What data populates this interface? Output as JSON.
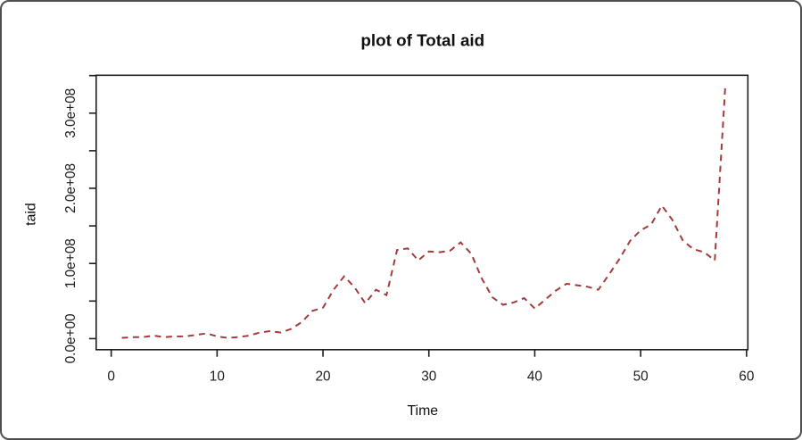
{
  "window": {
    "background_color": "#ffffff",
    "border_color": "#4f4f4f"
  },
  "chart_data": {
    "type": "line",
    "title": "plot of Total aid",
    "xlabel": "Time",
    "ylabel": "taid",
    "grid": false,
    "legend": null,
    "axis_color": "#1c1c1c",
    "x_ticks": [
      0,
      10,
      20,
      30,
      40,
      50,
      60
    ],
    "xlim": [
      -1.3,
      60.3
    ],
    "y_tick_values_e8": [
      0,
      0.5,
      1,
      1.5,
      2,
      2.5,
      3,
      3.5
    ],
    "y_tick_labels": [
      "0.0e+00",
      "",
      "1.0e+08",
      "",
      "2.0e+08",
      "",
      "3.0e+08",
      ""
    ],
    "ylim_e8": [
      -0.15,
      3.52
    ],
    "value_unit": "values_e8 are in units of 1e8 (100,000,000)",
    "x": [
      1,
      2,
      3,
      4,
      5,
      6,
      7,
      8,
      9,
      10,
      11,
      12,
      13,
      14,
      15,
      16,
      17,
      18,
      19,
      20,
      21,
      22,
      23,
      24,
      25,
      26,
      27,
      28,
      29,
      30,
      31,
      32,
      33,
      34,
      35,
      36,
      37,
      38,
      39,
      40,
      41,
      42,
      43,
      44,
      45,
      46,
      47,
      48,
      49,
      50,
      51,
      52,
      53,
      54,
      55,
      56,
      57,
      58
    ],
    "values_e8": [
      0.01,
      0.02,
      0.02,
      0.04,
      0.02,
      0.03,
      0.03,
      0.05,
      0.07,
      0.03,
      0.01,
      0.02,
      0.04,
      0.08,
      0.1,
      0.08,
      0.13,
      0.22,
      0.37,
      0.41,
      0.65,
      0.83,
      0.68,
      0.47,
      0.65,
      0.58,
      1.18,
      1.2,
      1.04,
      1.16,
      1.15,
      1.17,
      1.28,
      1.13,
      0.8,
      0.55,
      0.45,
      0.48,
      0.54,
      0.4,
      0.52,
      0.64,
      0.73,
      0.71,
      0.69,
      0.65,
      0.85,
      1.06,
      1.3,
      1.44,
      1.52,
      1.77,
      1.58,
      1.3,
      1.19,
      1.15,
      1.04,
      3.38
    ],
    "line": {
      "color": "#A33B3B",
      "style": "dashed",
      "width": 2
    }
  }
}
